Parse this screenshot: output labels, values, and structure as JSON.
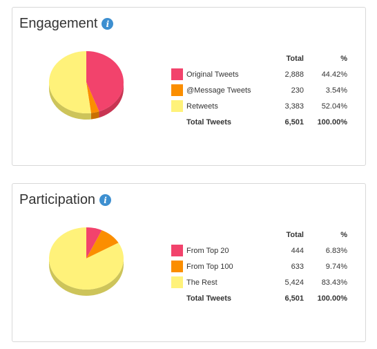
{
  "chart_data": [
    {
      "type": "pie",
      "title": "Engagement",
      "columns": {
        "total": "Total",
        "percent": "%"
      },
      "slices": [
        {
          "label": "Original Tweets",
          "total": "2,888",
          "percent": "44.42%",
          "value": 44.42,
          "color": "#f2436c",
          "side_color": "#c83452"
        },
        {
          "label": "@Message Tweets",
          "total": "230",
          "percent": "3.54%",
          "value": 3.54,
          "color": "#fb8e00",
          "side_color": "#c96f00"
        },
        {
          "label": "Retweets",
          "total": "3,383",
          "percent": "52.04%",
          "value": 52.04,
          "color": "#fff27a",
          "side_color": "#cdc45a"
        }
      ],
      "total_row": {
        "label": "Total Tweets",
        "total": "6,501",
        "percent": "100.00%"
      }
    },
    {
      "type": "pie",
      "title": "Participation",
      "columns": {
        "total": "Total",
        "percent": "%"
      },
      "slices": [
        {
          "label": "From Top 20",
          "total": "444",
          "percent": "6.83%",
          "value": 6.83,
          "color": "#f2436c",
          "side_color": "#c83452"
        },
        {
          "label": "From Top 100",
          "total": "633",
          "percent": "9.74%",
          "value": 9.74,
          "color": "#fb8e00",
          "side_color": "#c96f00"
        },
        {
          "label": "The Rest",
          "total": "5,424",
          "percent": "83.43%",
          "value": 83.43,
          "color": "#fff27a",
          "side_color": "#cdc45a"
        }
      ],
      "total_row": {
        "label": "Total Tweets",
        "total": "6,501",
        "percent": "100.00%"
      }
    }
  ],
  "icons": {
    "info": "info-icon",
    "info_glyph": "i"
  }
}
